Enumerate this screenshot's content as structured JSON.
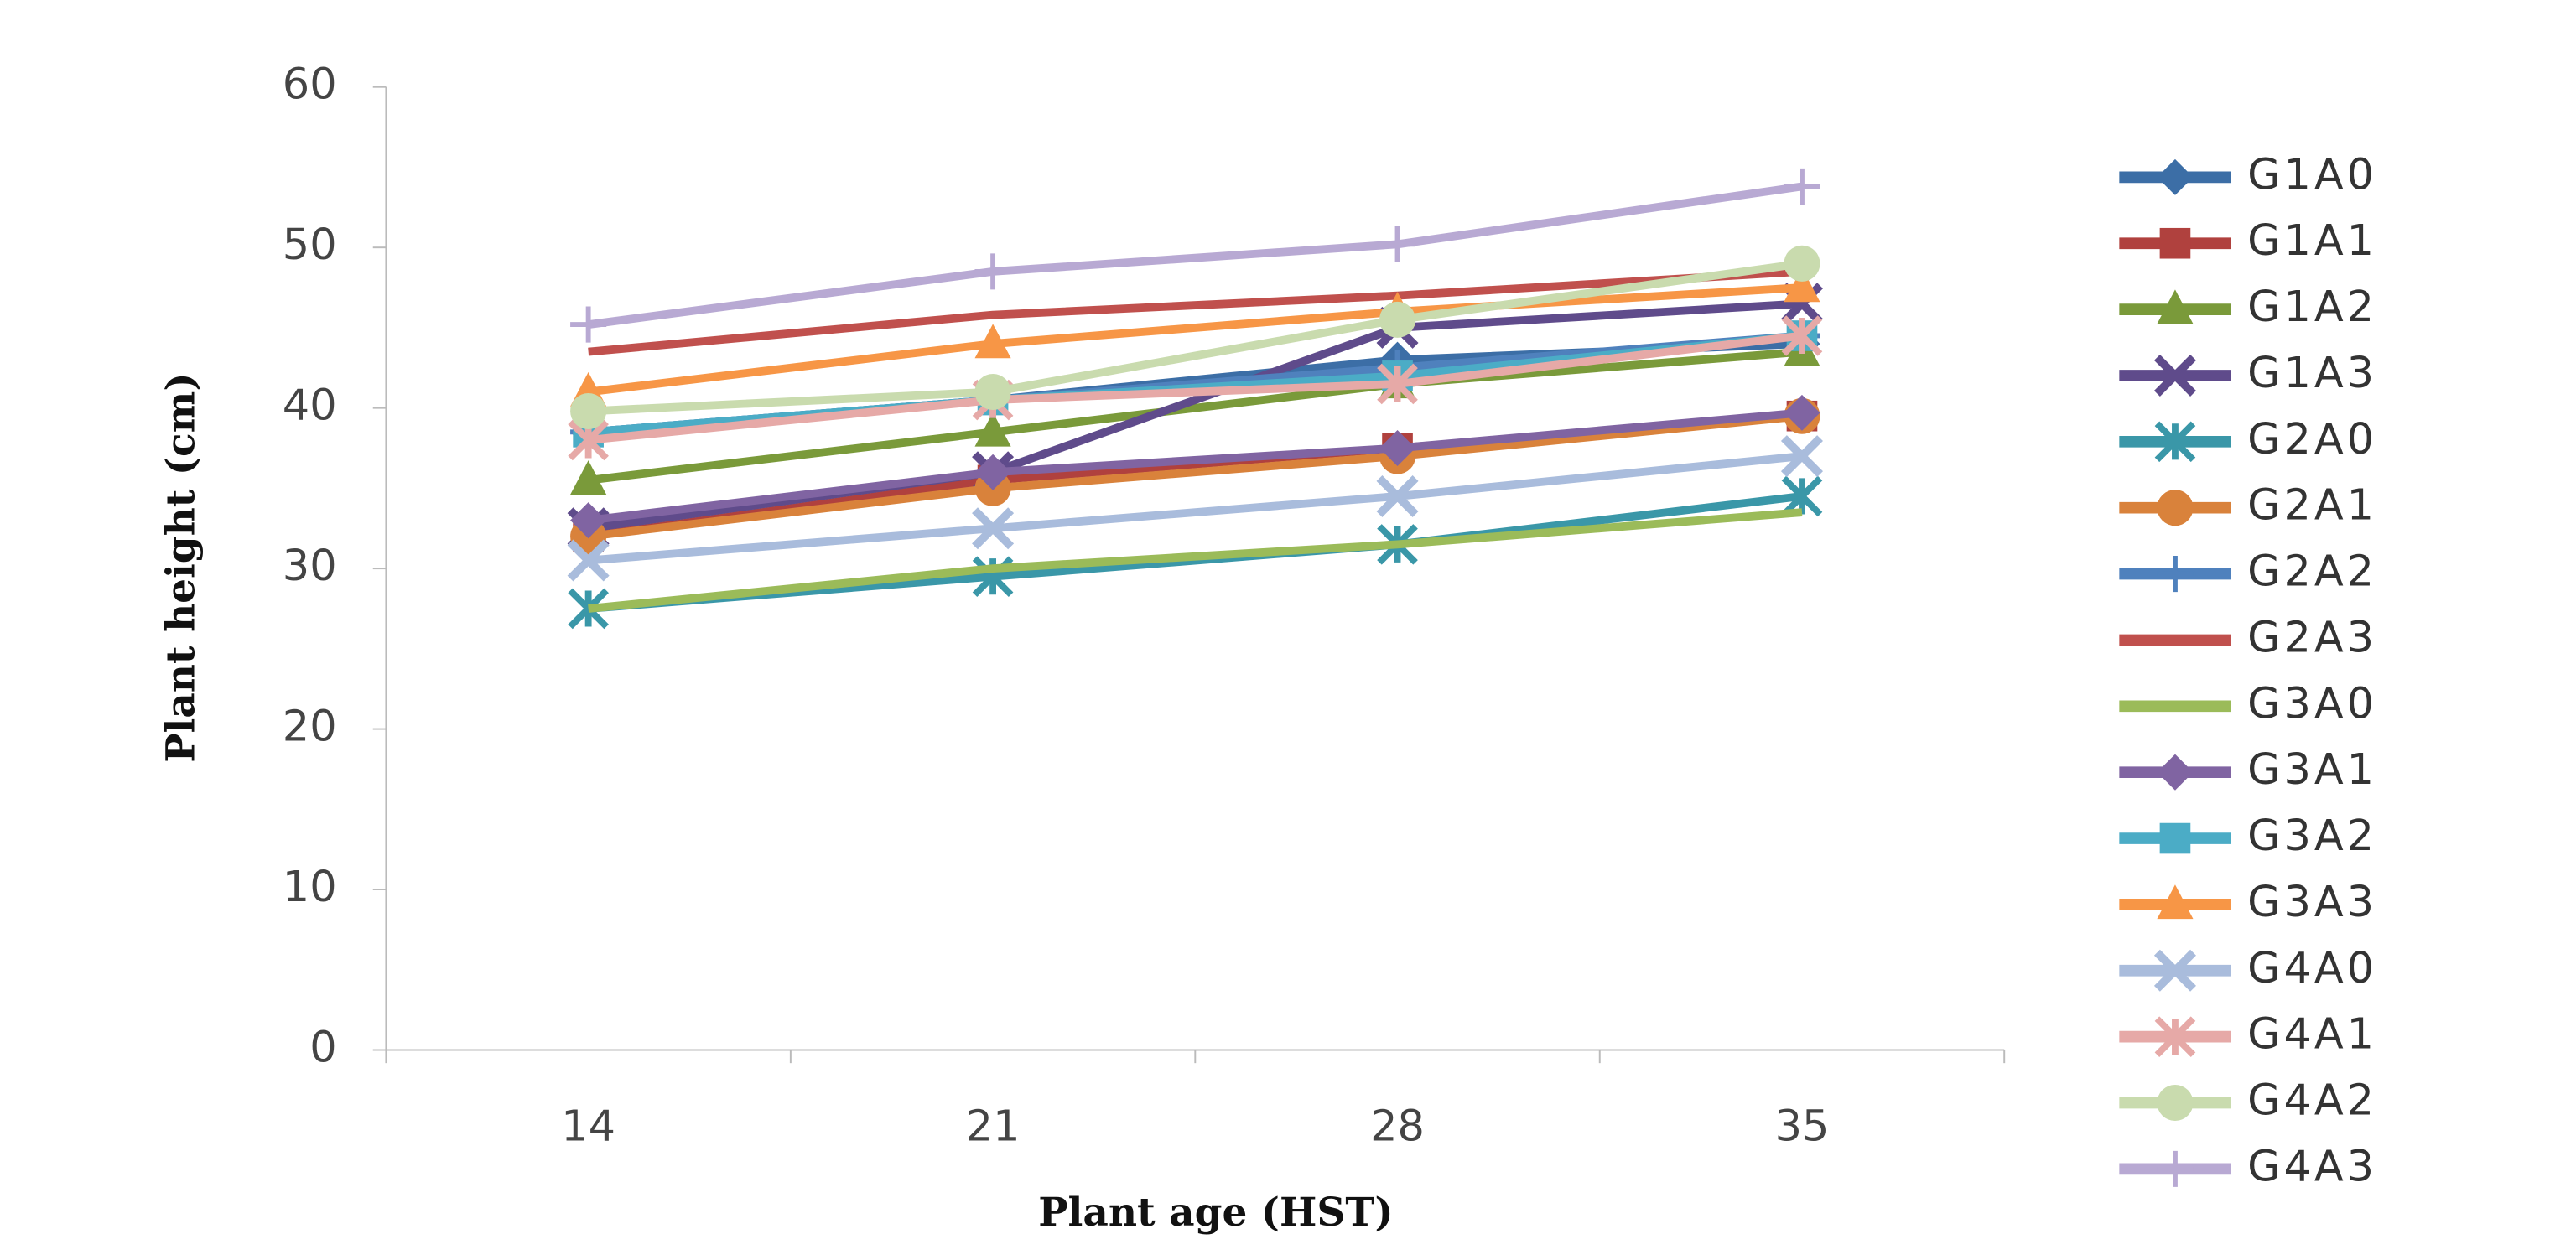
{
  "chart_data": {
    "type": "line",
    "x_label": "Plant age (HST)",
    "y_label": "Plant height (cm)",
    "categories": [
      "14",
      "21",
      "28",
      "35"
    ],
    "ylim": [
      0,
      60
    ],
    "yticks": [
      0,
      10,
      20,
      30,
      40,
      50,
      60
    ],
    "series": [
      {
        "name": "G1A0",
        "color": "#3c6ea6",
        "marker": "diamond",
        "values": [
          38.5,
          40.5,
          43,
          44
        ]
      },
      {
        "name": "G1A1",
        "color": "#b0413e",
        "marker": "square",
        "values": [
          32,
          35.5,
          37.5,
          39.5
        ]
      },
      {
        "name": "G1A2",
        "color": "#7a9a3a",
        "marker": "triangle",
        "values": [
          35.5,
          38.5,
          41.5,
          43.5
        ]
      },
      {
        "name": "G1A3",
        "color": "#5f4b8b",
        "marker": "x",
        "values": [
          32.5,
          36,
          45,
          46.5
        ]
      },
      {
        "name": "G2A0",
        "color": "#3a97a8",
        "marker": "star",
        "values": [
          27.5,
          29.5,
          31.5,
          34.5
        ]
      },
      {
        "name": "G2A1",
        "color": "#d9823b",
        "marker": "circle",
        "values": [
          32,
          35,
          37,
          39.5
        ]
      },
      {
        "name": "G2A2",
        "color": "#4f81bd",
        "marker": "plus",
        "values": [
          38.5,
          40.5,
          42.5,
          44.5
        ]
      },
      {
        "name": "G2A3",
        "color": "#c0504d",
        "marker": "none",
        "values": [
          43.5,
          45.8,
          47,
          48.5
        ]
      },
      {
        "name": "G3A0",
        "color": "#9bbb59",
        "marker": "none",
        "values": [
          27.5,
          30,
          31.5,
          33.5
        ]
      },
      {
        "name": "G3A1",
        "color": "#8064a2",
        "marker": "diamond",
        "values": [
          33,
          36,
          37.5,
          39.7
        ]
      },
      {
        "name": "G3A2",
        "color": "#4bacc6",
        "marker": "square",
        "values": [
          38.5,
          40.5,
          42,
          44.5
        ]
      },
      {
        "name": "G3A3",
        "color": "#f79646",
        "marker": "triangle",
        "values": [
          41,
          44,
          46,
          47.5
        ]
      },
      {
        "name": "G4A0",
        "color": "#a9bcdc",
        "marker": "x",
        "values": [
          30.5,
          32.5,
          34.5,
          37
        ]
      },
      {
        "name": "G4A1",
        "color": "#e6a9a7",
        "marker": "star",
        "values": [
          38,
          40.5,
          41.5,
          44.5
        ]
      },
      {
        "name": "G4A2",
        "color": "#c9dbae",
        "marker": "circle",
        "values": [
          39.8,
          41,
          45.5,
          49
        ]
      },
      {
        "name": "G4A3",
        "color": "#b8a9d3",
        "marker": "plus",
        "values": [
          45.2,
          48.5,
          50.2,
          53.8
        ]
      }
    ]
  }
}
